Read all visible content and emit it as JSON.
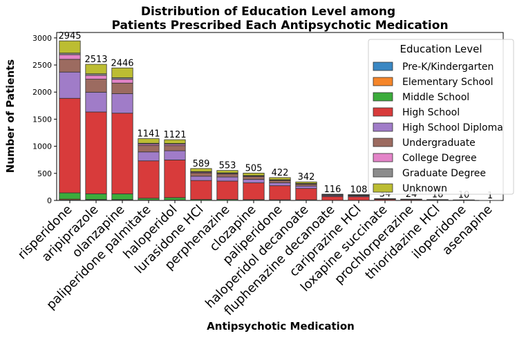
{
  "chart_data": {
    "type": "bar",
    "stacked": true,
    "title": "Distribution of Education Level among Patients Prescribed Each Antipsychotic Medication",
    "title_lines": [
      "Distribution of Education Level among",
      "Patients Prescribed Each Antipsychotic Medication"
    ],
    "xlabel": "Antipsychotic Medication",
    "ylabel": "Number of Patients",
    "ylim": [
      0,
      3100
    ],
    "yticks": [
      0,
      500,
      1000,
      1500,
      2000,
      2500,
      3000
    ],
    "categories": [
      "risperidone",
      "aripiprazole",
      "olanzapine",
      "paliperidone palmitate",
      "haloperidol",
      "lurasidone HCl",
      "perphenazine",
      "clozapine",
      "paliperidone",
      "haloperidol decanoate",
      "fluphenazine decanoate",
      "cariprazine HCl",
      "loxapine succinate",
      "prochlorperazine",
      "thioridazine HCl",
      "iloperidone",
      "asenapine"
    ],
    "totals": [
      2945,
      2513,
      2446,
      1141,
      1121,
      589,
      553,
      505,
      422,
      342,
      116,
      108,
      34,
      24,
      16,
      10,
      1
    ],
    "legend_title": "Education Level",
    "legend_position": "top-right",
    "series": [
      {
        "name": "Pre-K/Kindergarten",
        "color": "#3a87c3",
        "values": [
          10,
          8,
          6,
          2,
          3,
          1,
          1,
          1,
          1,
          1,
          0,
          0,
          0,
          0,
          0,
          0,
          0
        ]
      },
      {
        "name": "Elementary School",
        "color": "#f5862a",
        "values": [
          15,
          10,
          10,
          4,
          4,
          2,
          2,
          2,
          1,
          1,
          0,
          0,
          0,
          0,
          0,
          0,
          0
        ]
      },
      {
        "name": "Middle School",
        "color": "#3cac3c",
        "values": [
          115,
          105,
          105,
          35,
          45,
          15,
          15,
          12,
          10,
          9,
          3,
          3,
          1,
          1,
          1,
          0,
          0
        ]
      },
      {
        "name": "High School",
        "color": "#d83b3b",
        "values": [
          1745,
          1510,
          1490,
          690,
          695,
          350,
          340,
          310,
          260,
          210,
          70,
          65,
          20,
          14,
          9,
          6,
          1
        ]
      },
      {
        "name": "High School Diploma",
        "color": "#a07cc8",
        "values": [
          485,
          365,
          360,
          165,
          170,
          80,
          75,
          65,
          55,
          45,
          16,
          14,
          5,
          3,
          2,
          1,
          0
        ]
      },
      {
        "name": "Undergraduate",
        "color": "#9c6b60",
        "values": [
          235,
          240,
          195,
          120,
          95,
          60,
          55,
          50,
          40,
          35,
          12,
          12,
          4,
          3,
          2,
          1,
          0
        ]
      },
      {
        "name": "College Degree",
        "color": "#e384c8",
        "values": [
          85,
          70,
          70,
          25,
          25,
          15,
          13,
          12,
          10,
          8,
          3,
          3,
          1,
          1,
          1,
          1,
          0
        ]
      },
      {
        "name": "Graduate Degree",
        "color": "#8c8c8c",
        "values": [
          30,
          30,
          30,
          15,
          15,
          10,
          8,
          8,
          6,
          5,
          2,
          2,
          1,
          0,
          0,
          0,
          0
        ]
      },
      {
        "name": "Unknown",
        "color": "#bcbd32",
        "values": [
          225,
          175,
          180,
          85,
          69,
          56,
          44,
          45,
          39,
          28,
          10,
          9,
          2,
          2,
          1,
          1,
          0
        ]
      }
    ]
  }
}
